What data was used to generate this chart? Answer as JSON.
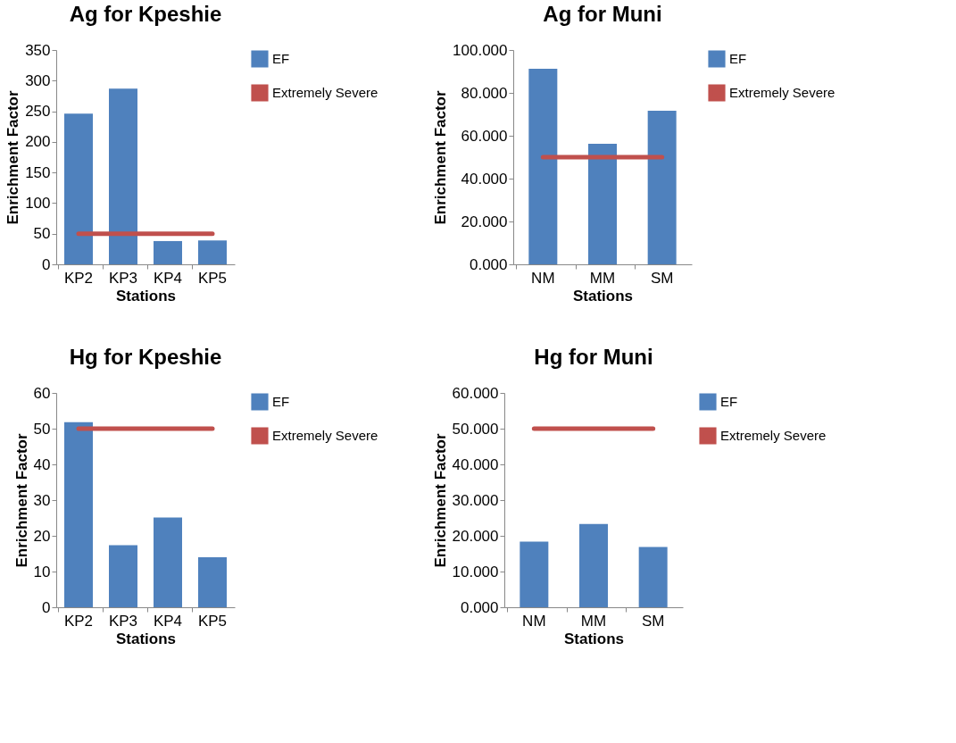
{
  "chart_data": [
    {
      "type": "bar",
      "title": "Ag for Kpeshie",
      "xlabel": "Stations",
      "ylabel": "Enrichment Factor",
      "categories": [
        "KP2",
        "KP3",
        "KP4",
        "KP5"
      ],
      "series": [
        {
          "name": "EF",
          "color": "#4f81bd",
          "values": [
            246,
            287,
            38,
            39
          ]
        },
        {
          "name": "Extremely Severe",
          "type": "line",
          "color": "#c0504d",
          "values": [
            50,
            50,
            50,
            50
          ]
        }
      ],
      "ylim": [
        0,
        350
      ],
      "yticks": [
        0,
        50,
        100,
        150,
        200,
        250,
        300,
        350
      ],
      "legend": "right",
      "grid": false
    },
    {
      "type": "bar",
      "title": "Ag for Muni",
      "xlabel": "Stations",
      "ylabel": "Enrichment Factor",
      "categories": [
        "NM",
        "MM",
        "SM"
      ],
      "series": [
        {
          "name": "EF",
          "color": "#4f81bd",
          "values": [
            91.3,
            56.3,
            71.7
          ]
        },
        {
          "name": "Extremely Severe",
          "type": "line",
          "color": "#c0504d",
          "values": [
            50,
            50,
            50
          ]
        }
      ],
      "ylim": [
        0,
        100
      ],
      "yticks": [
        {
          "value": 0,
          "label": "0.000"
        },
        {
          "value": 20,
          "label": "20.000"
        },
        {
          "value": 40,
          "label": "40.000"
        },
        {
          "value": 60,
          "label": "60.000"
        },
        {
          "value": 80,
          "label": "80.000"
        },
        {
          "value": 100,
          "label": "100.000"
        }
      ],
      "legend": "right",
      "grid": false
    },
    {
      "type": "bar",
      "title": "Hg for Kpeshie",
      "xlabel": "Stations",
      "ylabel": "Enrichment Factor",
      "categories": [
        "KP2",
        "KP3",
        "KP4",
        "KP5"
      ],
      "series": [
        {
          "name": "EF",
          "color": "#4f81bd",
          "values": [
            51.8,
            17.4,
            25.1,
            14.0
          ]
        },
        {
          "name": "Extremely Severe",
          "type": "line",
          "color": "#c0504d",
          "values": [
            50,
            50,
            50,
            50
          ]
        }
      ],
      "ylim": [
        0,
        60
      ],
      "yticks": [
        0,
        10,
        20,
        30,
        40,
        50,
        60
      ],
      "legend": "right",
      "grid": false
    },
    {
      "type": "bar",
      "title": "Hg for Muni",
      "xlabel": "Stations",
      "ylabel": "Enrichment Factor",
      "categories": [
        "NM",
        "MM",
        "SM"
      ],
      "series": [
        {
          "name": "EF",
          "color": "#4f81bd",
          "values": [
            18.4,
            23.3,
            16.9
          ]
        },
        {
          "name": "Extremely Severe",
          "type": "line",
          "color": "#c0504d",
          "values": [
            50,
            50,
            50
          ]
        }
      ],
      "ylim": [
        0,
        60
      ],
      "yticks": [
        {
          "value": 0,
          "label": "0.000"
        },
        {
          "value": 10,
          "label": "10.000"
        },
        {
          "value": 20,
          "label": "20.000"
        },
        {
          "value": 30,
          "label": "30.000"
        },
        {
          "value": 40,
          "label": "40.000"
        },
        {
          "value": 50,
          "label": "50.000"
        },
        {
          "value": 60,
          "label": "60.000"
        }
      ],
      "legend": "right",
      "grid": false
    }
  ]
}
